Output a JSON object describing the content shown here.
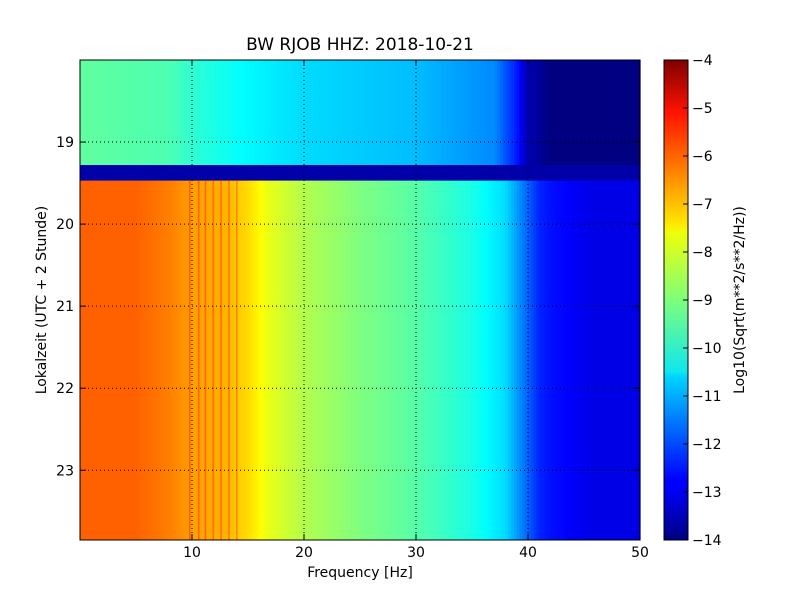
{
  "chart_data": {
    "type": "heatmap",
    "title": "BW RJOB HHZ: 2018-10-21",
    "xlabel": "Frequency [Hz]",
    "ylabel": "Lokalzeit (UTC + 2 Stunde)",
    "xlim": [
      0,
      50
    ],
    "ylim": [
      18.0,
      23.85
    ],
    "y_inverted": true,
    "x_ticks": [
      10,
      20,
      30,
      40,
      50
    ],
    "x_tick_labels": [
      "10",
      "20",
      "30",
      "40",
      "50"
    ],
    "y_ticks": [
      19,
      20,
      21,
      22,
      23
    ],
    "y_tick_labels": [
      "19",
      "20",
      "21",
      "22",
      "23"
    ],
    "grid": true,
    "colorbar": {
      "label": "Log10(Sqrt(m**2/s**2/Hz))",
      "min": -14,
      "max": -4,
      "ticks": [
        -4,
        -5,
        -6,
        -7,
        -8,
        -9,
        -10,
        -11,
        -12,
        -13,
        -14
      ],
      "tick_labels": [
        "−4",
        "−5",
        "−6",
        "−7",
        "−8",
        "−9",
        "−10",
        "−11",
        "−12",
        "−13",
        "−14"
      ],
      "colormap": "jet"
    },
    "segments": [
      {
        "time_range": [
          18.0,
          19.28
        ],
        "freq_profile": [
          [
            0,
            -9.3
          ],
          [
            8,
            -9.5
          ],
          [
            10,
            -9.8
          ],
          [
            15,
            -10.3
          ],
          [
            20,
            -10.6
          ],
          [
            30,
            -10.9
          ],
          [
            37,
            -11.4
          ],
          [
            39,
            -12.5
          ],
          [
            40,
            -13.5
          ],
          [
            42,
            -14
          ],
          [
            50,
            -14
          ]
        ]
      },
      {
        "time_range": [
          19.28,
          19.47
        ],
        "freq_profile": [
          [
            0,
            -13.6
          ],
          [
            50,
            -13.6
          ]
        ]
      },
      {
        "time_range": [
          19.47,
          23.85
        ],
        "freq_profile": [
          [
            0,
            -6.2
          ],
          [
            5,
            -6.2
          ],
          [
            8,
            -6.5
          ],
          [
            10,
            -6.8
          ],
          [
            13,
            -7.0
          ],
          [
            15,
            -7.4
          ],
          [
            17,
            -8.0
          ],
          [
            20,
            -8.5
          ],
          [
            25,
            -9.0
          ],
          [
            30,
            -9.4
          ],
          [
            35,
            -10.0
          ],
          [
            38,
            -10.6
          ],
          [
            40,
            -11.8
          ],
          [
            41,
            -12.4
          ],
          [
            42,
            -12.6
          ],
          [
            46,
            -13.0
          ],
          [
            50,
            -13.0
          ]
        ]
      }
    ],
    "harmonic_lines_hz": [
      9.8,
      10.6,
      11.2,
      11.9,
      12.6,
      13.3,
      14.0
    ]
  }
}
